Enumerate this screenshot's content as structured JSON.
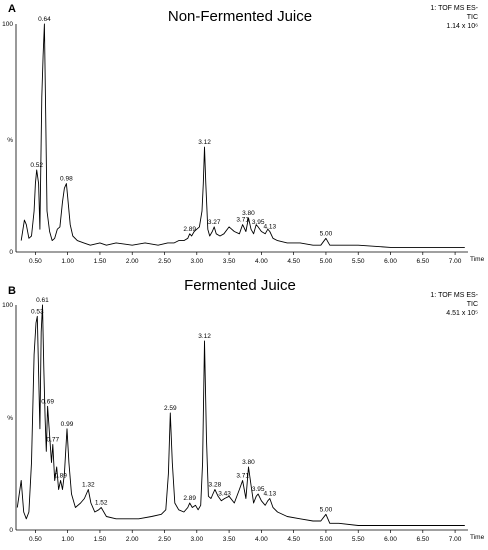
{
  "chart_data": [
    {
      "type": "line",
      "panel_letter": "A",
      "title": "Non-Fermented Juice",
      "info_lines": [
        "1: TOF MS ES-",
        "TIC",
        "1.14 x 10⁶"
      ],
      "xlabel": "Time",
      "ylabel": "%",
      "xlim": [
        0.2,
        7.2
      ],
      "ylim": [
        0,
        100
      ],
      "x_ticks": [
        "0.50",
        "1.00",
        "1.50",
        "2.00",
        "2.50",
        "3.00",
        "3.50",
        "4.00",
        "4.50",
        "5.00",
        "5.50",
        "6.00",
        "6.50",
        "7.00"
      ],
      "y_ticks": [
        "100",
        "%",
        "0"
      ],
      "series": [
        {
          "x": [
            0.28,
            0.33,
            0.36,
            0.4,
            0.44,
            0.48,
            0.5,
            0.52,
            0.55,
            0.57,
            0.6,
            0.62,
            0.64,
            0.66,
            0.68,
            0.72,
            0.76,
            0.8,
            0.84,
            0.88,
            0.92,
            0.95,
            0.98,
            1.0,
            1.04,
            1.08,
            1.15,
            1.25,
            1.35,
            1.5,
            1.6,
            1.75,
            2.0,
            2.2,
            2.4,
            2.55,
            2.65,
            2.72,
            2.8,
            2.86,
            2.89,
            2.92,
            2.96,
            3.0,
            3.04,
            3.08,
            3.1,
            3.12,
            3.14,
            3.17,
            3.2,
            3.24,
            3.27,
            3.3,
            3.36,
            3.42,
            3.5,
            3.58,
            3.66,
            3.71,
            3.76,
            3.8,
            3.84,
            3.88,
            3.92,
            3.95,
            4.0,
            4.06,
            4.1,
            4.13,
            4.18,
            4.25,
            4.4,
            4.6,
            4.8,
            4.92,
            5.0,
            5.06,
            5.2,
            5.5,
            6.0,
            6.5,
            7.0,
            7.15
          ],
          "y": [
            5,
            14,
            12,
            6,
            7,
            18,
            30,
            36,
            30,
            10,
            68,
            86,
            100,
            60,
            18,
            9,
            5,
            6,
            10,
            11,
            22,
            28,
            30,
            24,
            12,
            7,
            5,
            4,
            3,
            4,
            3,
            4,
            3,
            4,
            3,
            4,
            4,
            5,
            5,
            6,
            8,
            7,
            9,
            10,
            11,
            18,
            30,
            46,
            30,
            10,
            7,
            9,
            11,
            8,
            7,
            8,
            11,
            9,
            8,
            12,
            9,
            15,
            10,
            8,
            12,
            11,
            9,
            8,
            10,
            9,
            6,
            5,
            4,
            4,
            3,
            3,
            6,
            3,
            3,
            3,
            2,
            2,
            2,
            2
          ]
        }
      ],
      "peak_labels": [
        {
          "text": "0.52",
          "x": 0.52,
          "y": 36
        },
        {
          "text": "0.64",
          "x": 0.64,
          "y": 100
        },
        {
          "text": "0.98",
          "x": 0.98,
          "y": 30
        },
        {
          "text": "2.89",
          "x": 2.89,
          "y": 8
        },
        {
          "text": "3.12",
          "x": 3.12,
          "y": 46
        },
        {
          "text": "3.27",
          "x": 3.27,
          "y": 11
        },
        {
          "text": "3.71",
          "x": 3.71,
          "y": 12
        },
        {
          "text": "3.80",
          "x": 3.8,
          "y": 15
        },
        {
          "text": "3.95",
          "x": 3.95,
          "y": 11
        },
        {
          "text": "4.13",
          "x": 4.13,
          "y": 9
        },
        {
          "text": "5.00",
          "x": 5.0,
          "y": 6
        }
      ]
    },
    {
      "type": "line",
      "panel_letter": "B",
      "title": "Fermented Juice",
      "info_lines": [
        "1: TOF MS ES-",
        "TIC",
        "4.51 x 10⁵"
      ],
      "xlabel": "Time",
      "ylabel": "%",
      "xlim": [
        0.2,
        7.2
      ],
      "ylim": [
        0,
        100
      ],
      "x_ticks": [
        "0.50",
        "1.00",
        "1.50",
        "2.00",
        "2.50",
        "3.00",
        "3.50",
        "4.00",
        "4.50",
        "5.00",
        "5.50",
        "6.00",
        "6.50",
        "7.00"
      ],
      "y_ticks": [
        "100",
        "%",
        "0"
      ],
      "series": [
        {
          "x": [
            0.22,
            0.28,
            0.32,
            0.36,
            0.4,
            0.44,
            0.48,
            0.51,
            0.53,
            0.55,
            0.57,
            0.59,
            0.61,
            0.63,
            0.65,
            0.67,
            0.69,
            0.72,
            0.75,
            0.77,
            0.8,
            0.83,
            0.86,
            0.89,
            0.92,
            0.95,
            0.99,
            1.02,
            1.06,
            1.12,
            1.2,
            1.26,
            1.32,
            1.36,
            1.42,
            1.48,
            1.52,
            1.6,
            1.75,
            1.9,
            2.1,
            2.3,
            2.45,
            2.52,
            2.56,
            2.59,
            2.62,
            2.66,
            2.72,
            2.8,
            2.86,
            2.89,
            2.93,
            2.98,
            3.02,
            3.06,
            3.09,
            3.12,
            3.15,
            3.18,
            3.22,
            3.25,
            3.28,
            3.33,
            3.38,
            3.43,
            3.5,
            3.58,
            3.66,
            3.71,
            3.76,
            3.8,
            3.84,
            3.88,
            3.92,
            3.95,
            4.0,
            4.06,
            4.1,
            4.13,
            4.18,
            4.25,
            4.4,
            4.6,
            4.8,
            4.92,
            5.0,
            5.06,
            5.2,
            5.5,
            6.0,
            6.5,
            7.0,
            7.15
          ],
          "y": [
            10,
            22,
            8,
            5,
            8,
            30,
            78,
            92,
            95,
            70,
            45,
            88,
            100,
            72,
            50,
            35,
            55,
            42,
            30,
            38,
            22,
            28,
            18,
            22,
            18,
            25,
            45,
            30,
            16,
            10,
            12,
            14,
            18,
            12,
            8,
            9,
            10,
            6,
            5,
            5,
            5,
            6,
            7,
            9,
            25,
            52,
            30,
            12,
            9,
            8,
            10,
            12,
            10,
            11,
            9,
            11,
            30,
            84,
            40,
            15,
            14,
            16,
            18,
            15,
            13,
            14,
            15,
            12,
            18,
            22,
            14,
            28,
            20,
            12,
            15,
            16,
            13,
            11,
            13,
            14,
            10,
            8,
            6,
            5,
            4,
            4,
            7,
            3,
            3,
            2,
            2,
            2,
            2,
            2
          ]
        }
      ],
      "peak_labels": [
        {
          "text": "0.53",
          "x": 0.53,
          "y": 95
        },
        {
          "text": "0.61",
          "x": 0.61,
          "y": 100
        },
        {
          "text": "0.69",
          "x": 0.69,
          "y": 55
        },
        {
          "text": "0.77",
          "x": 0.77,
          "y": 38
        },
        {
          "text": "0.89",
          "x": 0.89,
          "y": 22
        },
        {
          "text": "0.99",
          "x": 0.99,
          "y": 45
        },
        {
          "text": "1.32",
          "x": 1.32,
          "y": 18
        },
        {
          "text": "1.52",
          "x": 1.52,
          "y": 10
        },
        {
          "text": "2.59",
          "x": 2.59,
          "y": 52
        },
        {
          "text": "2.89",
          "x": 2.89,
          "y": 12
        },
        {
          "text": "3.12",
          "x": 3.12,
          "y": 84
        },
        {
          "text": "3.28",
          "x": 3.28,
          "y": 18
        },
        {
          "text": "3.43",
          "x": 3.43,
          "y": 14
        },
        {
          "text": "3.71",
          "x": 3.71,
          "y": 22
        },
        {
          "text": "3.80",
          "x": 3.8,
          "y": 28
        },
        {
          "text": "3.95",
          "x": 3.95,
          "y": 16
        },
        {
          "text": "4.13",
          "x": 4.13,
          "y": 14
        },
        {
          "text": "5.00",
          "x": 5.0,
          "y": 7
        }
      ]
    }
  ]
}
